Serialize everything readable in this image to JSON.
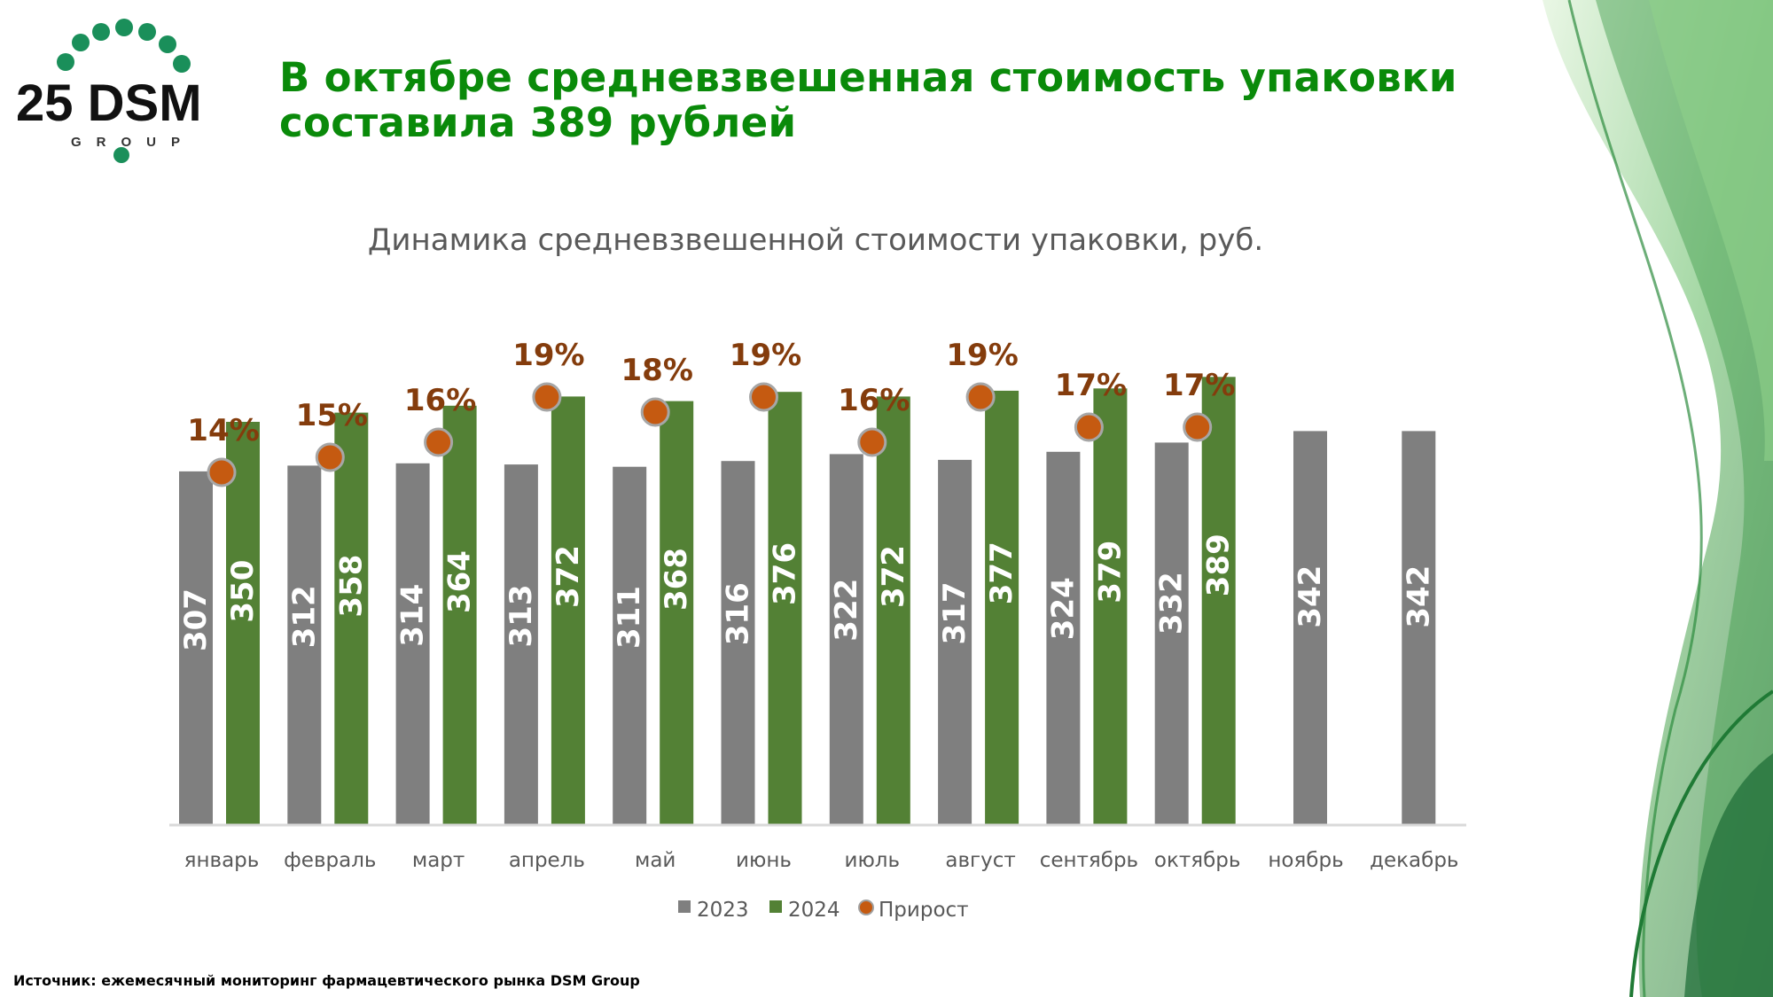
{
  "header": {
    "title_line1": "В октябре средневзвешенная стоимость упаковки",
    "title_line2": "составила 389 рублей",
    "logo_text": "25 DSM",
    "logo_sub": "GROUP"
  },
  "footer": {
    "source": "Источник: ежемесячный мониторинг фармацевтического рынка DSM Group"
  },
  "colors": {
    "s2023": "#7f7f7f",
    "s2024": "#538135",
    "growth": "#c55a11",
    "growth_label": "#843c0c",
    "title": "#0a8a0a"
  },
  "chart_data": {
    "type": "bar",
    "title": "Динамика средневзвешенной стоимости упаковки, руб.",
    "categories": [
      "январь",
      "февраль",
      "март",
      "апрель",
      "май",
      "июнь",
      "июль",
      "август",
      "сентябрь",
      "октябрь",
      "ноябрь",
      "декабрь"
    ],
    "series": [
      {
        "name": "2023",
        "values": [
          307,
          312,
          314,
          313,
          311,
          316,
          322,
          317,
          324,
          332,
          342,
          342
        ]
      },
      {
        "name": "2024",
        "values": [
          350,
          358,
          364,
          372,
          368,
          376,
          372,
          377,
          379,
          389,
          null,
          null
        ]
      },
      {
        "name": "Прирост",
        "type": "scatter",
        "axis": "secondary",
        "values": [
          14,
          15,
          16,
          19,
          18,
          19,
          16,
          19,
          17,
          17,
          null,
          null
        ],
        "labels": [
          "14%",
          "15%",
          "16%",
          "19%",
          "18%",
          "19%",
          "16%",
          "19%",
          "17%",
          "17%",
          "",
          ""
        ]
      }
    ],
    "ylim": [
      0,
      400
    ],
    "legend": [
      "2023",
      "2024",
      "Прирост"
    ],
    "legend_position": "bottom",
    "grid": false
  }
}
